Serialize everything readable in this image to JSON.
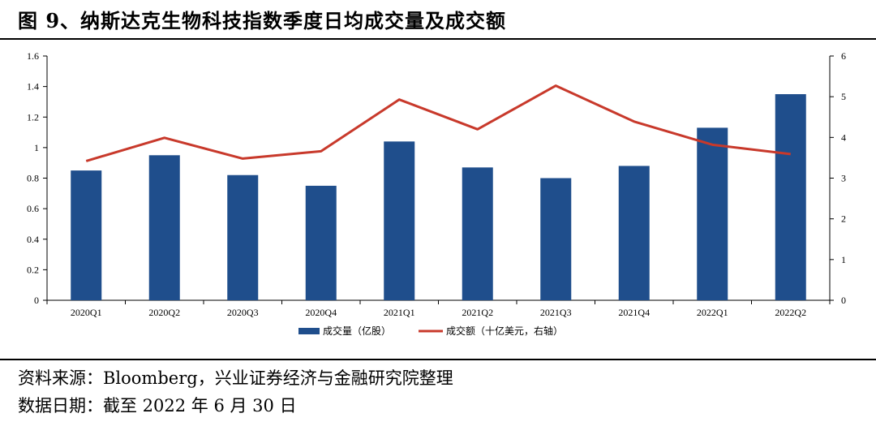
{
  "title": "图 9、纳斯达克生物科技指数季度日均成交量及成交额",
  "footer": {
    "source": "资料来源：Bloomberg，兴业证券经济与金融研究院整理",
    "date": "数据日期：截至 2022 年 6 月 30 日"
  },
  "colors": {
    "bar": "#1f4e8c",
    "line": "#c8392b"
  },
  "chart_data": {
    "type": "bar",
    "categories": [
      "2020Q1",
      "2020Q2",
      "2020Q3",
      "2020Q4",
      "2021Q1",
      "2021Q2",
      "2021Q3",
      "2021Q4",
      "2022Q1",
      "2022Q2"
    ],
    "series": [
      {
        "name": "成交量（亿股）",
        "type": "bar",
        "axis": "left",
        "values": [
          0.85,
          0.95,
          0.82,
          0.75,
          1.04,
          0.87,
          0.8,
          0.88,
          1.13,
          1.35
        ]
      },
      {
        "name": "成交额（十亿美元，右轴）",
        "type": "line",
        "axis": "right",
        "values": [
          3.42,
          3.99,
          3.48,
          3.66,
          4.93,
          4.2,
          5.27,
          4.39,
          3.82,
          3.59
        ]
      }
    ],
    "y_left": {
      "range": [
        0,
        1.6
      ],
      "ticks": [
        "0",
        "0.2",
        "0.4",
        "0.6",
        "0.8",
        "1",
        "1.2",
        "1.4",
        "1.6"
      ]
    },
    "y_right": {
      "range": [
        0,
        6
      ],
      "ticks": [
        "0",
        "1",
        "2",
        "3",
        "4",
        "5",
        "6"
      ]
    },
    "legend_position": "bottom",
    "grid": false
  }
}
